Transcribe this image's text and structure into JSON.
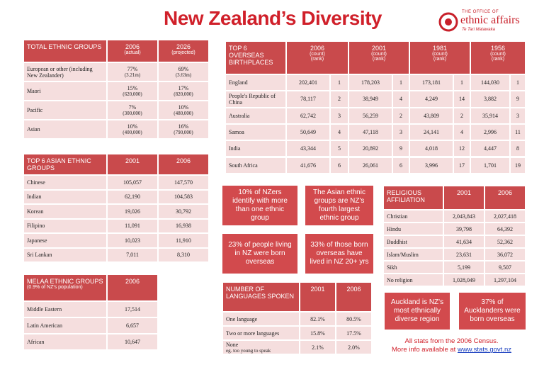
{
  "header": {
    "title": "New Zealand’s Diversity",
    "logo": {
      "top": "THE OFFICE OF",
      "name": "ethnic affairs",
      "maori": "Te Tari Matawaka"
    }
  },
  "tables": {
    "total_ethnic": {
      "header": [
        "TOTAL ETHNIC GROUPS",
        [
          "2006",
          "(actual)"
        ],
        [
          "2026",
          "(projected)"
        ]
      ],
      "rows": [
        [
          "European or other (including New Zealander)",
          [
            "77%",
            "(3.21m)"
          ],
          [
            "69%",
            "(3.63m)"
          ]
        ],
        [
          "Maori",
          [
            "15%",
            "(620,000)"
          ],
          [
            "17%",
            "(820,000)"
          ]
        ],
        [
          "Pacific",
          [
            "7%",
            "(300,000)"
          ],
          [
            "10%",
            "(480,000)"
          ]
        ],
        [
          "Asian",
          [
            "10%",
            "(400,000)"
          ],
          [
            "16%",
            "(790,000)"
          ]
        ]
      ]
    },
    "asian": {
      "header": [
        "TOP 6 ASIAN ETHNIC GROUPS",
        "2001",
        "2006"
      ],
      "rows": [
        [
          "Chinese",
          "105,057",
          "147,570"
        ],
        [
          "Indian",
          "62,190",
          "104,583"
        ],
        [
          "Korean",
          "19,026",
          "30,792"
        ],
        [
          "Filipino",
          "11,091",
          "16,938"
        ],
        [
          "Japanese",
          "10,023",
          "11,910"
        ],
        [
          "Sri Lankan",
          "7,011",
          "8,310"
        ]
      ]
    },
    "melaa": {
      "header": [
        [
          "MELAA ETHNIC GROUPS",
          "(0.9% of NZ's population)"
        ],
        "2006"
      ],
      "rows": [
        [
          "Middle Eastern",
          "17,514"
        ],
        [
          "Latin American",
          "6,657"
        ],
        [
          "African",
          "10,647"
        ]
      ]
    },
    "birthplaces": {
      "header": [
        "TOP 6 OVERSEAS BIRTHPLACES",
        [
          "2006",
          "(count)",
          "(rank)"
        ],
        [
          "2001",
          "(count)",
          "(rank)"
        ],
        [
          "1981",
          "(count)",
          "(rank)"
        ],
        [
          "1956",
          "(count)",
          "(rank)"
        ]
      ],
      "rows": [
        [
          "England",
          "202,401",
          "1",
          "178,203",
          "1",
          "173,181",
          "1",
          "144,030",
          "1"
        ],
        [
          "People's Republic of China",
          "78,117",
          "2",
          "38,949",
          "4",
          "4,249",
          "14",
          "3,882",
          "9"
        ],
        [
          "Australia",
          "62,742",
          "3",
          "56,259",
          "2",
          "43,809",
          "2",
          "35,914",
          "3"
        ],
        [
          "Samoa",
          "50,649",
          "4",
          "47,118",
          "3",
          "24,141",
          "4",
          "2,996",
          "11"
        ],
        [
          "India",
          "43,344",
          "5",
          "20,892",
          "9",
          "4,018",
          "12",
          "4,447",
          "8"
        ],
        [
          "South Africa",
          "41,676",
          "6",
          "26,061",
          "6",
          "3,996",
          "17",
          "1,701",
          "19"
        ]
      ]
    },
    "religion": {
      "header": [
        "RELIGIOUS AFFILIATION",
        "2001",
        "2006"
      ],
      "rows": [
        [
          "Christian",
          "2,043,843",
          "2,027,418"
        ],
        [
          "Hindu",
          "39,798",
          "64,392"
        ],
        [
          "Buddhist",
          "41,634",
          "52,362"
        ],
        [
          "Islam/Muslim",
          "23,631",
          "36,072"
        ],
        [
          "Sikh",
          "5,199",
          "9,507"
        ],
        [
          "No religion",
          "1,028,049",
          "1,297,104"
        ]
      ]
    },
    "languages": {
      "header": [
        "NUMBER OF LANGUAGES SPOKEN",
        "2001",
        "2006"
      ],
      "rows": [
        [
          "One language",
          "82.1%",
          "80.5%"
        ],
        [
          "Two or more languages",
          "15.8%",
          "17.5%"
        ],
        [
          [
            "None",
            "eg. too young to speak"
          ],
          "2.1%",
          "2.0%"
        ]
      ]
    }
  },
  "facts": [
    "10% of NZers identify with more than one ethnic group",
    "The Asian ethnic groups are NZ's fourth largest ethnic group",
    "23% of people living in NZ were born overseas",
    "33% of those born overseas have lived in NZ 20+ yrs",
    "Auckland is NZ's most ethnically diverse region",
    "37% of Aucklanders were born overseas"
  ],
  "footer": {
    "line1": "All stats from the 2006 Census.",
    "line2": "More info available at",
    "link": "www.stats.govt.nz"
  }
}
